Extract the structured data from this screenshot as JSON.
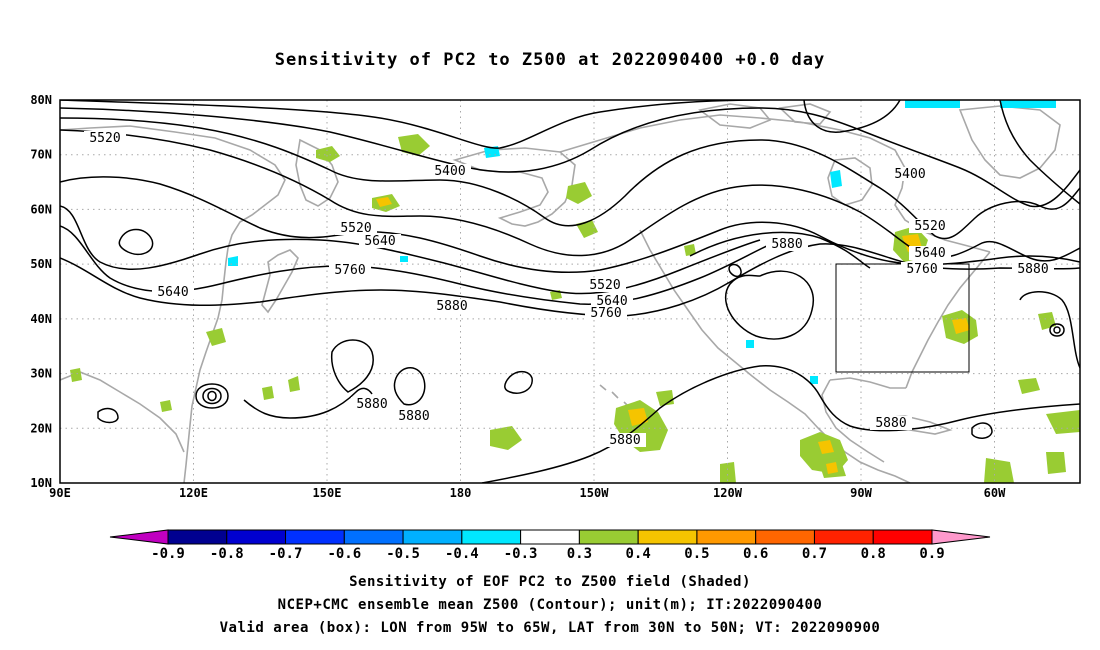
{
  "title": "Sensitivity of PC2 to Z500 at 2022090400 +0.0 day",
  "map": {
    "lat_labels": [
      "80N",
      "70N",
      "60N",
      "50N",
      "40N",
      "30N",
      "20N",
      "10N"
    ],
    "lon_labels": [
      "90E",
      "120E",
      "150E",
      "180",
      "150W",
      "120W",
      "90W",
      "60W"
    ],
    "contour_labels": [
      {
        "text": "5520"
      },
      {
        "text": "5400"
      },
      {
        "text": "5520"
      },
      {
        "text": "5640"
      },
      {
        "text": "5760"
      },
      {
        "text": "5640"
      },
      {
        "text": "5880"
      },
      {
        "text": "5520"
      },
      {
        "text": "5640"
      },
      {
        "text": "5760"
      },
      {
        "text": "5880"
      },
      {
        "text": "5400"
      },
      {
        "text": "5520"
      },
      {
        "text": "5640"
      },
      {
        "text": "5760"
      },
      {
        "text": "5880"
      },
      {
        "text": "5880"
      },
      {
        "text": "5880"
      },
      {
        "text": "5880"
      },
      {
        "text": "5880"
      }
    ],
    "valid_box": {
      "lon_from": "95W",
      "lon_to": "65W",
      "lat_from": "30N",
      "lat_to": "50N"
    },
    "colors": {
      "contour": "#000000",
      "coastline": "#a8a8a8",
      "grid": "#a8a8a8"
    }
  },
  "colorbar": {
    "labels": [
      "-0.9",
      "-0.8",
      "-0.7",
      "-0.6",
      "-0.5",
      "-0.4",
      "-0.3",
      "0.3",
      "0.4",
      "0.5",
      "0.6",
      "0.7",
      "0.8",
      "0.9"
    ],
    "colors": [
      "#c000c0",
      "#000090",
      "#0000d0",
      "#0030ff",
      "#0070ff",
      "#00b0ff",
      "#00e8ff",
      "#ffffff",
      "#99cc33",
      "#f5c400",
      "#ff9900",
      "#ff6600",
      "#ff2200",
      "#ff0000",
      "#ff99cc"
    ]
  },
  "captions": [
    "Sensitivity of EOF PC2 to Z500 field (Shaded)",
    "NCEP+CMC ensemble mean Z500 (Contour); unit(m); IT:2022090400",
    "Valid area (box): LON from 95W to 65W, LAT from 30N to 50N; VT: 2022090900"
  ]
}
